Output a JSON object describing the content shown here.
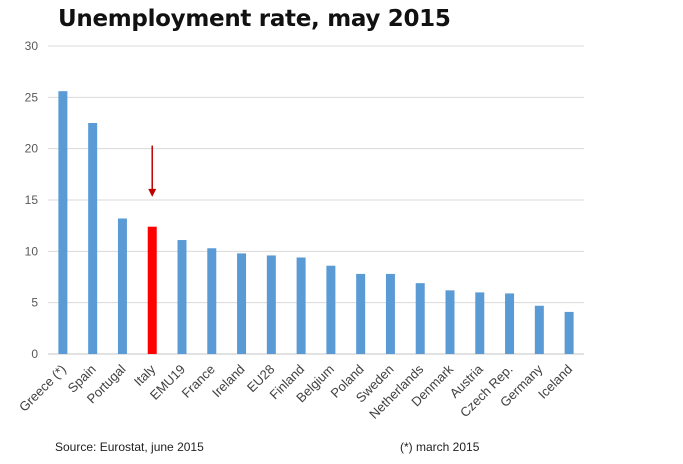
{
  "chart_data": {
    "type": "bar",
    "title": "Unemployment rate, may 2015",
    "xlabel": "",
    "ylabel": "",
    "ylim": [
      0,
      30
    ],
    "yticks": [
      0,
      5,
      10,
      15,
      20,
      25,
      30
    ],
    "grid": true,
    "categories": [
      "Greece (*)",
      "Spain",
      "Portugal",
      "Italy",
      "EMU19",
      "France",
      "Ireland",
      "EU28",
      "Finland",
      "Belgium",
      "Poland",
      "Sweden",
      "Netherlands",
      "Denmark",
      "Austria",
      "Czech Rep.",
      "Germany",
      "Iceland"
    ],
    "values": [
      25.6,
      22.5,
      13.2,
      12.4,
      11.1,
      10.3,
      9.8,
      9.6,
      9.4,
      8.6,
      7.8,
      7.8,
      6.9,
      6.2,
      6.0,
      5.9,
      4.7,
      4.1
    ],
    "highlight": {
      "category": "Italy",
      "color": "#ff0000",
      "annotation": "down-arrow",
      "arrow_from_value": 20.3,
      "arrow_to_value": 15.3
    },
    "bar_color": "#5b9bd5",
    "grid_color": "#d9d9d9",
    "source": "Source: Eurostat, june 2015",
    "footnote": "(*) march 2015"
  }
}
